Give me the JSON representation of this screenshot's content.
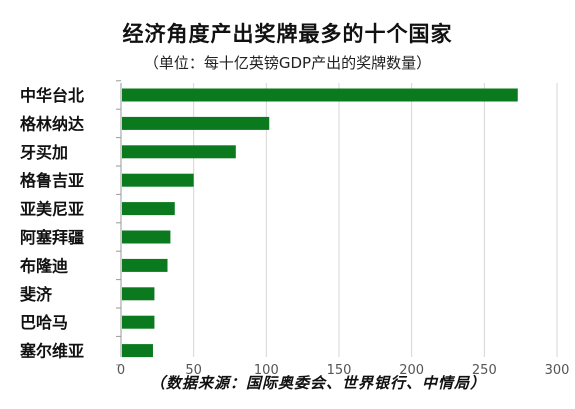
{
  "title": "经济角度产出奖牌最多的十个国家",
  "subtitle": "（单位：每十亿英镑GDP产出的奖牌数量）",
  "source": "（数据来源：国际奥委会、世界银行、中情局）",
  "colors": {
    "bar": "#0b7a1f",
    "grid": "#d4d4d4",
    "axis": "#9a9a9a"
  },
  "chart_data": {
    "type": "bar",
    "orientation": "horizontal",
    "categories": [
      "中华台北",
      "格林纳达",
      "牙买加",
      "格鲁吉亚",
      "亚美尼亚",
      "阿塞拜疆",
      "布隆迪",
      "斐济",
      "巴哈马",
      "塞尔维亚"
    ],
    "values": [
      273,
      102,
      79,
      50,
      37,
      34,
      32,
      23,
      23,
      22
    ],
    "xlim": [
      0,
      300
    ],
    "xticks": [
      0,
      50,
      100,
      150,
      200,
      250,
      300
    ],
    "grid": true,
    "legend": "none"
  }
}
